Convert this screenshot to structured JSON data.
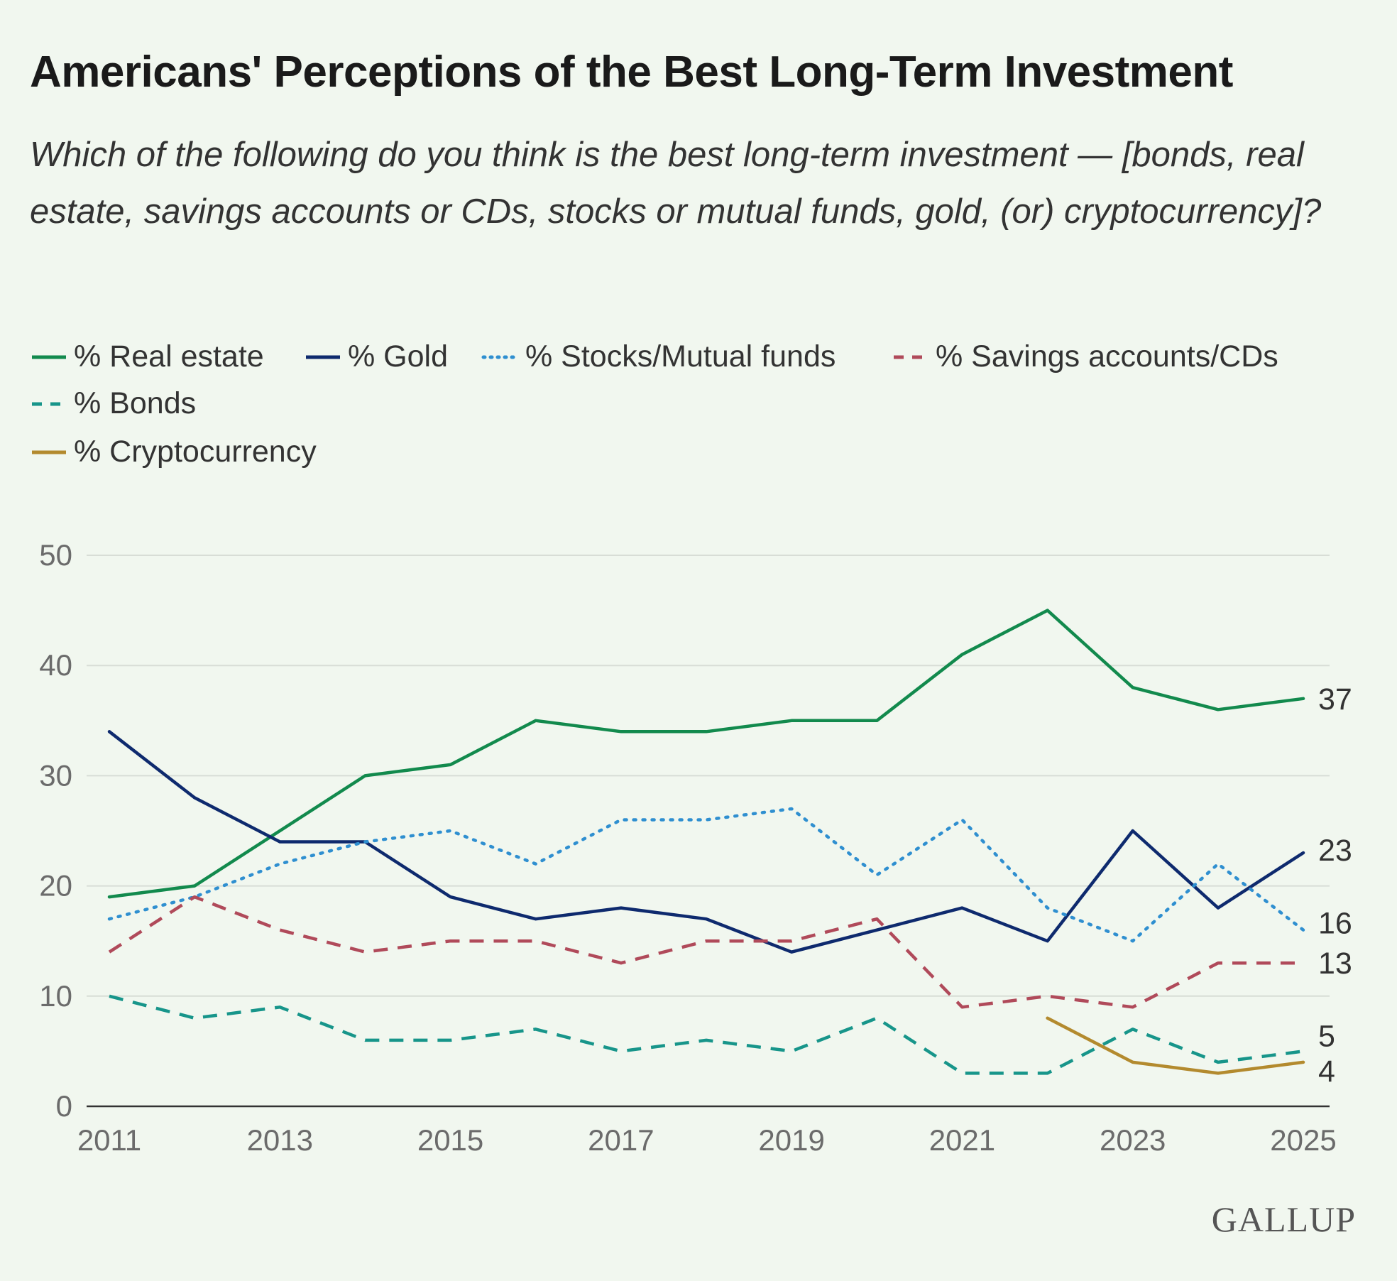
{
  "chart_data": {
    "type": "line",
    "title": "Americans' Perceptions of the Best Long-Term Investment",
    "subtitle": "Which of the following do you think is the best long-term investment — [bonds, real estate, savings accounts or CDs, stocks or mutual funds, gold, (or) cryptocurrency]?",
    "x": [
      2011,
      2012,
      2013,
      2014,
      2015,
      2016,
      2017,
      2018,
      2019,
      2020,
      2021,
      2022,
      2023,
      2024,
      2025
    ],
    "x_ticks": [
      "2011",
      "2013",
      "2015",
      "2017",
      "2019",
      "2021",
      "2023",
      "2025"
    ],
    "y_ticks": [
      "0",
      "10",
      "20",
      "30",
      "40",
      "50"
    ],
    "ylim": [
      0,
      50
    ],
    "xlim": [
      2011,
      2025
    ],
    "grid": true,
    "legend": "top",
    "series": [
      {
        "name": "% Real estate",
        "color": "#128a4d",
        "style": "solid",
        "values": [
          19,
          20,
          25,
          30,
          31,
          35,
          34,
          34,
          35,
          35,
          41,
          45,
          38,
          36,
          37
        ],
        "end_label": "37"
      },
      {
        "name": "% Gold",
        "color": "#0e2a6e",
        "style": "solid",
        "values": [
          34,
          28,
          24,
          24,
          19,
          17,
          18,
          17,
          14,
          16,
          18,
          15,
          25,
          18,
          23
        ],
        "end_label": "23"
      },
      {
        "name": "% Stocks/Mutual funds",
        "color": "#2f8fd0",
        "style": "dotted",
        "values": [
          17,
          19,
          22,
          24,
          25,
          22,
          26,
          26,
          27,
          21,
          26,
          18,
          15,
          22,
          16
        ],
        "end_label": "16"
      },
      {
        "name": "% Savings accounts/CDs",
        "color": "#b04a5a",
        "style": "dashed",
        "values": [
          14,
          19,
          16,
          14,
          15,
          15,
          13,
          15,
          15,
          17,
          9,
          10,
          9,
          13,
          13
        ],
        "end_label": "13"
      },
      {
        "name": "% Bonds",
        "color": "#17958a",
        "style": "dashed",
        "values": [
          10,
          8,
          9,
          6,
          6,
          7,
          5,
          6,
          5,
          8,
          3,
          3,
          7,
          4,
          5
        ],
        "end_label": "5"
      },
      {
        "name": "% Cryptocurrency",
        "color": "#b38a2e",
        "style": "solid",
        "values": [
          null,
          null,
          null,
          null,
          null,
          null,
          null,
          null,
          null,
          null,
          null,
          8,
          4,
          3,
          4
        ],
        "end_label": "4"
      }
    ]
  },
  "brand": "GALLUP"
}
